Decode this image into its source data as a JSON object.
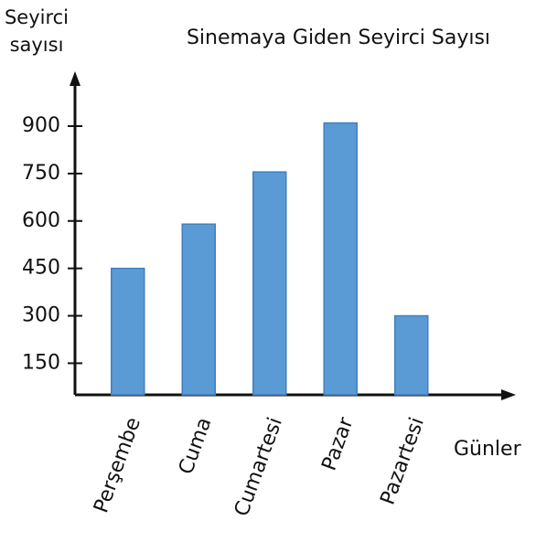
{
  "chart_data": {
    "type": "bar",
    "title": "Sinemaya Giden Seyirci Sayısı",
    "y_label": "Seyirci sayısı",
    "x_label": "Günler",
    "categories": [
      "Perşembe",
      "Cuma",
      "Cumartesi",
      "Pazar",
      "Pazartesi"
    ],
    "values": [
      450,
      590,
      755,
      910,
      300
    ],
    "color": "#5b9bd5",
    "ylim": [
      50,
      950
    ],
    "yticks": [
      150,
      300,
      450,
      600,
      750,
      900
    ],
    "grid": false
  }
}
